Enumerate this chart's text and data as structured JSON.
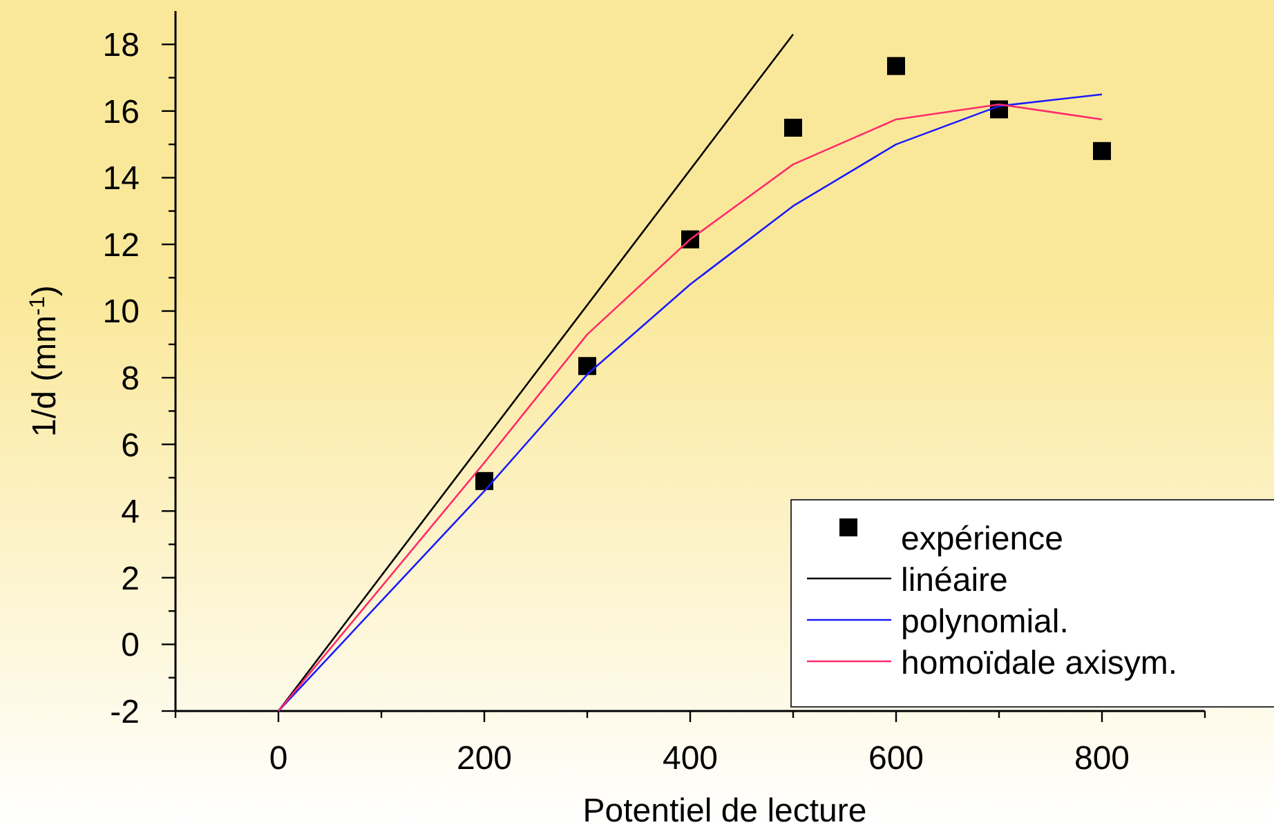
{
  "chart_data": {
    "type": "line",
    "xlabel": "Potentiel de lecture",
    "ylabel": "1/d (mm$^{-1}$)",
    "xlim": [
      -100,
      900
    ],
    "ylim": [
      -2,
      19
    ],
    "xticks": [
      {
        "value": -100,
        "label": null
      },
      0,
      {
        "value": 100,
        "label": null
      },
      200,
      {
        "value": 300,
        "label": null
      },
      400,
      {
        "value": 500,
        "label": null
      },
      600,
      {
        "value": 700,
        "label": null
      },
      800,
      {
        "value": 900,
        "label": null
      }
    ],
    "yticks": [
      -2,
      {
        "value": -1,
        "label": null
      },
      0,
      {
        "value": 1,
        "label": null
      },
      2,
      {
        "value": 3,
        "label": null
      },
      4,
      {
        "value": 5,
        "label": null
      },
      6,
      {
        "value": 7,
        "label": null
      },
      8,
      {
        "value": 9,
        "label": null
      },
      10,
      {
        "value": 11,
        "label": null
      },
      12,
      {
        "value": 13,
        "label": null
      },
      14,
      {
        "value": 15,
        "label": null
      },
      16,
      {
        "value": 17,
        "label": null
      },
      18
    ],
    "grid": false,
    "legend": "bottom right",
    "series": [
      {
        "name": "expérience",
        "type": "scatter",
        "marker": "square",
        "color": "#000000",
        "x": [
          200,
          300,
          400,
          500,
          600,
          700,
          800
        ],
        "values": [
          4.9,
          8.35,
          12.15,
          15.5,
          17.35,
          16.05,
          14.8
        ]
      },
      {
        "name": "linéaire",
        "color": "#000000",
        "x": [
          0,
          500
        ],
        "values": [
          -2,
          18.3
        ]
      },
      {
        "name": "polynomial.",
        "color": "#1a1aff",
        "x": [
          0,
          200,
          300,
          400,
          500,
          600,
          700,
          800
        ],
        "values": [
          -2,
          4.6,
          8.1,
          10.8,
          13.15,
          15.0,
          16.15,
          16.5
        ]
      },
      {
        "name": "homoïdale axisym.",
        "color": "#ff2a6a",
        "x": [
          0,
          200,
          300,
          400,
          500,
          600,
          700,
          800
        ],
        "values": [
          -2,
          5.45,
          9.3,
          12.15,
          14.4,
          15.75,
          16.2,
          15.75
        ]
      }
    ]
  }
}
